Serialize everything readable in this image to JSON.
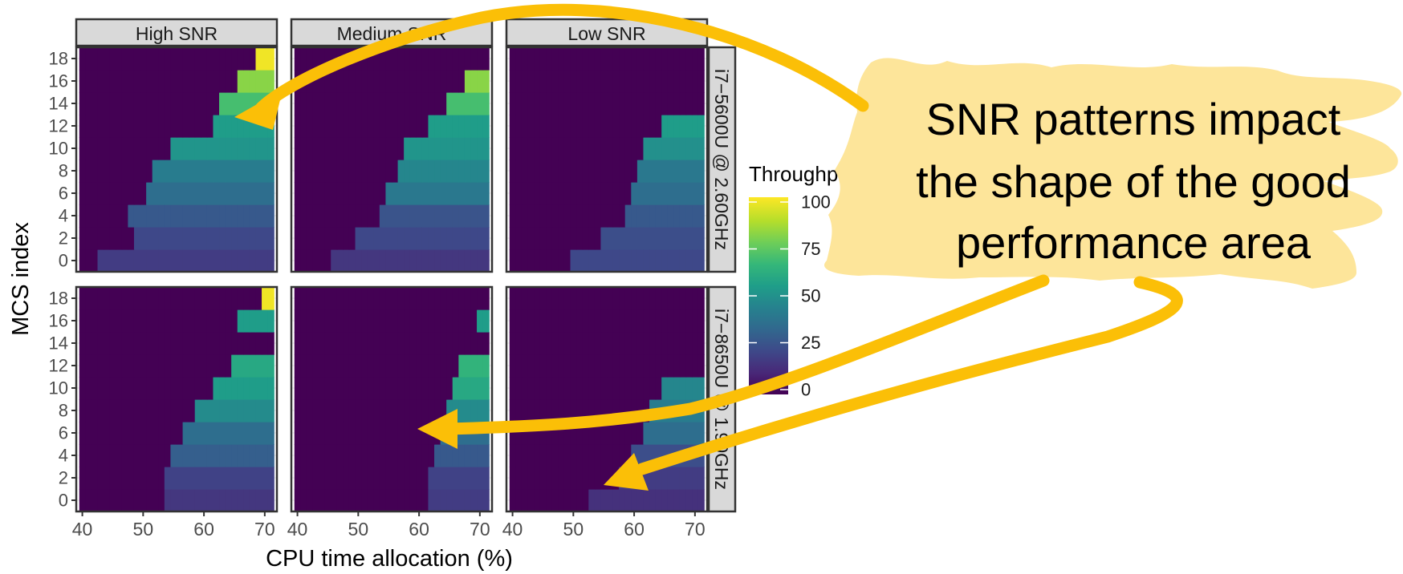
{
  "chart_data": {
    "type": "heatmap",
    "xlabel": "CPU time allocation (%)",
    "ylabel": "MCS index",
    "x_ticks": [
      40,
      50,
      60,
      70
    ],
    "y_ticks": [
      0,
      2,
      4,
      6,
      8,
      10,
      12,
      14,
      16,
      18
    ],
    "xlim": [
      39,
      72
    ],
    "ylim": [
      -1,
      19
    ],
    "grid": true,
    "col_facets": [
      "High SNR",
      "Medium SNR",
      "Low SNR"
    ],
    "row_facets": [
      "i7−5600U @ 2.60GHz",
      "i7−8650U @ 1.90GHz"
    ],
    "legend": {
      "title": "Throughput (%)",
      "ticks": [
        100,
        75,
        50,
        25,
        0
      ],
      "range": [
        0,
        100
      ],
      "colors": [
        "#440154",
        "#482878",
        "#3e4989",
        "#31688e",
        "#26828e",
        "#1f9e89",
        "#35b779",
        "#6ece58",
        "#b5de2b",
        "#fde725"
      ]
    },
    "panels": [
      {
        "row": 0,
        "col": 0,
        "x_start": 40,
        "rows": [
          {
            "mcs": 0,
            "onset": 43,
            "value": 18
          },
          {
            "mcs": 2,
            "onset": 49,
            "value": 22
          },
          {
            "mcs": 4,
            "onset": 48,
            "value": 28
          },
          {
            "mcs": 6,
            "onset": 51,
            "value": 36
          },
          {
            "mcs": 8,
            "onset": 52,
            "value": 42
          },
          {
            "mcs": 10,
            "onset": 55,
            "value": 52
          },
          {
            "mcs": 12,
            "onset": 62,
            "value": 55
          },
          {
            "mcs": 14,
            "onset": 63,
            "value": 70
          },
          {
            "mcs": 16,
            "onset": 66,
            "value": 82
          },
          {
            "mcs": 18,
            "onset": 69,
            "value": 98
          }
        ]
      },
      {
        "row": 0,
        "col": 1,
        "x_start": 40,
        "rows": [
          {
            "mcs": 0,
            "onset": 46,
            "value": 16
          },
          {
            "mcs": 2,
            "onset": 50,
            "value": 22
          },
          {
            "mcs": 4,
            "onset": 54,
            "value": 26
          },
          {
            "mcs": 6,
            "onset": 55,
            "value": 40
          },
          {
            "mcs": 8,
            "onset": 57,
            "value": 46
          },
          {
            "mcs": 10,
            "onset": 58,
            "value": 52
          },
          {
            "mcs": 12,
            "onset": 62,
            "value": 55
          },
          {
            "mcs": 14,
            "onset": 65,
            "value": 70
          },
          {
            "mcs": 16,
            "onset": 68,
            "value": 82
          },
          {
            "mcs": 18,
            "onset": 73,
            "value": 0
          }
        ]
      },
      {
        "row": 0,
        "col": 2,
        "x_start": 40,
        "rows": [
          {
            "mcs": 0,
            "onset": 50,
            "value": 22
          },
          {
            "mcs": 2,
            "onset": 55,
            "value": 24
          },
          {
            "mcs": 4,
            "onset": 59,
            "value": 28
          },
          {
            "mcs": 6,
            "onset": 60,
            "value": 36
          },
          {
            "mcs": 8,
            "onset": 61,
            "value": 40
          },
          {
            "mcs": 10,
            "onset": 62,
            "value": 50
          },
          {
            "mcs": 12,
            "onset": 65,
            "value": 55
          },
          {
            "mcs": 14,
            "onset": 73,
            "value": 0
          },
          {
            "mcs": 16,
            "onset": 73,
            "value": 0
          },
          {
            "mcs": 18,
            "onset": 73,
            "value": 0
          }
        ]
      },
      {
        "row": 1,
        "col": 0,
        "x_start": 40,
        "rows": [
          {
            "mcs": 0,
            "onset": 54,
            "value": 16
          },
          {
            "mcs": 2,
            "onset": 54,
            "value": 20
          },
          {
            "mcs": 4,
            "onset": 55,
            "value": 30
          },
          {
            "mcs": 6,
            "onset": 57,
            "value": 36
          },
          {
            "mcs": 8,
            "onset": 59,
            "value": 48
          },
          {
            "mcs": 10,
            "onset": 62,
            "value": 55
          },
          {
            "mcs": 12,
            "onset": 65,
            "value": 60
          },
          {
            "mcs": 14,
            "onset": 73,
            "value": 0
          },
          {
            "mcs": 16,
            "onset": 66,
            "value": 55
          },
          {
            "mcs": 18,
            "onset": 70,
            "value": 98
          }
        ]
      },
      {
        "row": 1,
        "col": 1,
        "x_start": 40,
        "rows": [
          {
            "mcs": 0,
            "onset": 62,
            "value": 18
          },
          {
            "mcs": 2,
            "onset": 62,
            "value": 20
          },
          {
            "mcs": 4,
            "onset": 63,
            "value": 28
          },
          {
            "mcs": 6,
            "onset": 64,
            "value": 36
          },
          {
            "mcs": 8,
            "onset": 65,
            "value": 48
          },
          {
            "mcs": 10,
            "onset": 66,
            "value": 60
          },
          {
            "mcs": 12,
            "onset": 67,
            "value": 65
          },
          {
            "mcs": 14,
            "onset": 73,
            "value": 0
          },
          {
            "mcs": 16,
            "onset": 70,
            "value": 55
          },
          {
            "mcs": 18,
            "onset": 73,
            "value": 0
          }
        ]
      },
      {
        "row": 1,
        "col": 2,
        "x_start": 40,
        "rows": [
          {
            "mcs": 0,
            "onset": 53,
            "value": 14
          },
          {
            "mcs": 2,
            "onset": 58,
            "value": 18
          },
          {
            "mcs": 4,
            "onset": 60,
            "value": 24
          },
          {
            "mcs": 6,
            "onset": 62,
            "value": 36
          },
          {
            "mcs": 8,
            "onset": 63,
            "value": 42
          },
          {
            "mcs": 10,
            "onset": 65,
            "value": 46
          },
          {
            "mcs": 12,
            "onset": 73,
            "value": 0
          },
          {
            "mcs": 14,
            "onset": 73,
            "value": 0
          },
          {
            "mcs": 16,
            "onset": 73,
            "value": 0
          },
          {
            "mcs": 18,
            "onset": 73,
            "value": 0
          }
        ]
      }
    ]
  },
  "annotation": {
    "text_lines": [
      "SNR patterns impact",
      "the shape of the good",
      "performance area"
    ],
    "callout_color": "#fde59a",
    "arrow_color": "#fbbf07"
  }
}
